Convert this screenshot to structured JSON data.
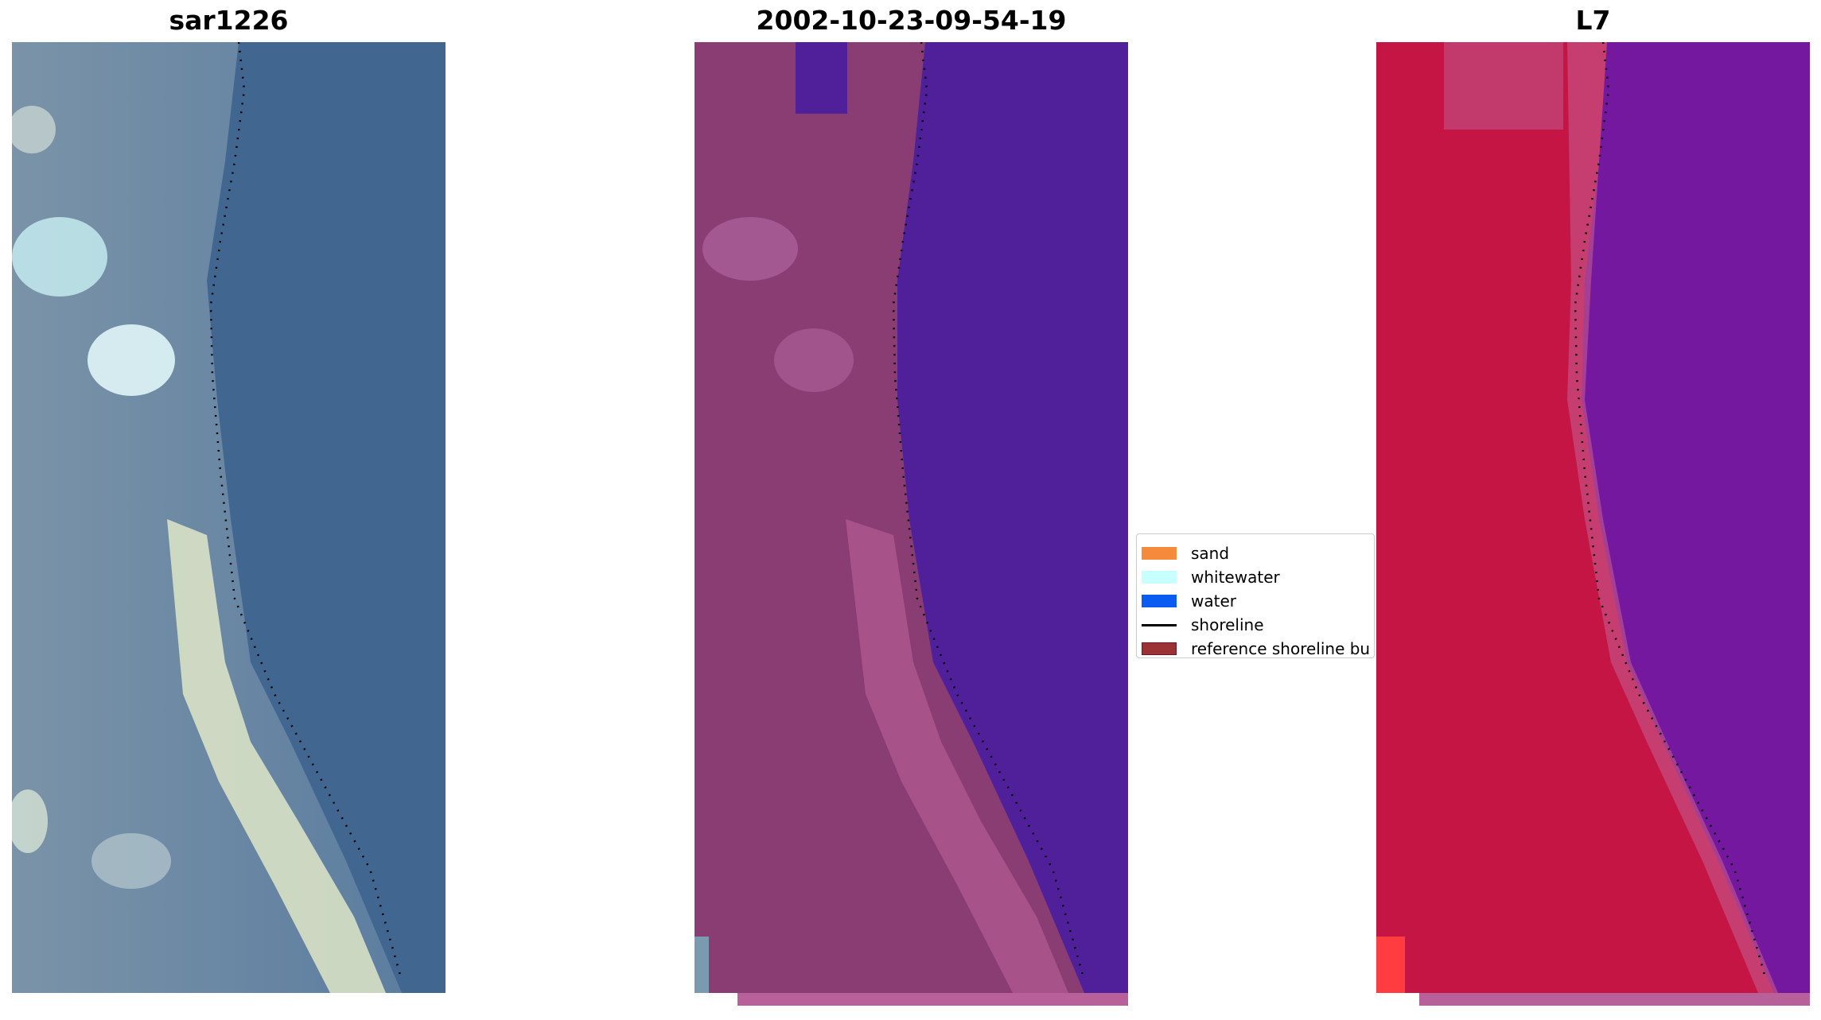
{
  "panels": [
    {
      "title": "sar1226"
    },
    {
      "title": "2002-10-23-09-54-19"
    },
    {
      "title": "L7"
    }
  ],
  "legend": {
    "items": [
      {
        "label": "sand",
        "color": "#f58a3c",
        "type": "patch"
      },
      {
        "label": "whitewater",
        "color": "#c8ffff",
        "type": "patch"
      },
      {
        "label": "water",
        "color": "#0a5cf0",
        "type": "patch"
      },
      {
        "label": "shoreline",
        "color": "#000000",
        "type": "line"
      },
      {
        "label": "reference shoreline bu",
        "color": "#9a3236",
        "type": "patch"
      }
    ]
  },
  "colors": {
    "rgb_water": "#41668f",
    "rgb_land": "#7d8fa8",
    "classified_water": "#50209a",
    "classified_land": "#8a3d72",
    "nir_water": "#7418a0",
    "nir_land": "#c41545",
    "buffer_strip": "#b8609a"
  }
}
